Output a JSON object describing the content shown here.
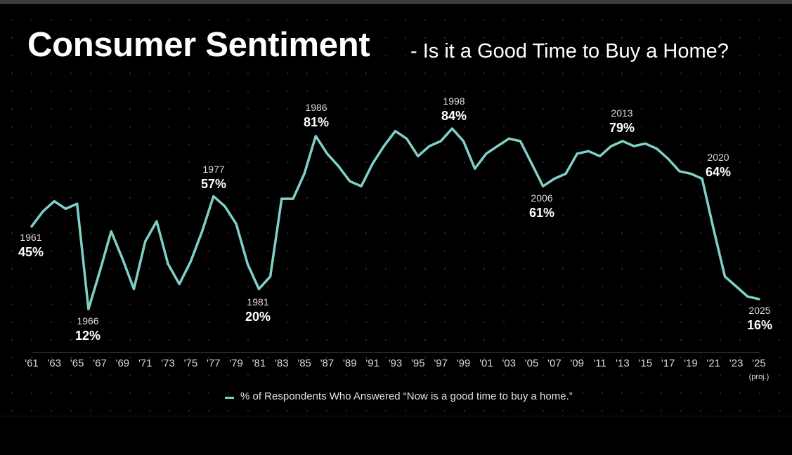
{
  "title": "Consumer Sentiment",
  "subtitle": "- Is it a Good Time to Buy a Home?",
  "chart_data": {
    "type": "line",
    "title": "Consumer Sentiment - Is it a Good Time to Buy a Home?",
    "xlabel": "",
    "ylabel": "",
    "x": [
      1961,
      1962,
      1963,
      1964,
      1965,
      1966,
      1967,
      1968,
      1969,
      1970,
      1971,
      1972,
      1973,
      1974,
      1975,
      1976,
      1977,
      1978,
      1979,
      1980,
      1981,
      1982,
      1983,
      1984,
      1985,
      1986,
      1987,
      1988,
      1989,
      1990,
      1991,
      1992,
      1993,
      1994,
      1995,
      1996,
      1997,
      1998,
      1999,
      2000,
      2001,
      2002,
      2003,
      2004,
      2005,
      2006,
      2007,
      2008,
      2009,
      2010,
      2011,
      2012,
      2013,
      2014,
      2015,
      2016,
      2017,
      2018,
      2019,
      2020,
      2021,
      2022,
      2023,
      2024,
      2025
    ],
    "series": [
      {
        "name": "% of Respondents Who Answered “Now is a good time to buy a home.”",
        "color": "#7fd1c8",
        "values": [
          45,
          51,
          55,
          52,
          54,
          12,
          27,
          43,
          32,
          20,
          39,
          47,
          30,
          22,
          31,
          43,
          57,
          53,
          46,
          30,
          20,
          25,
          56,
          56,
          66,
          81,
          74,
          69,
          63,
          61,
          70,
          77,
          83,
          80,
          73,
          77,
          79,
          84,
          79,
          68,
          74,
          77,
          80,
          79,
          70,
          61,
          64,
          66,
          74,
          75,
          73,
          77,
          79,
          77,
          78,
          76,
          72,
          67,
          66,
          64,
          44,
          25,
          21,
          17,
          16
        ]
      }
    ],
    "xlim": [
      1961,
      2025
    ],
    "ylim": [
      0,
      100
    ],
    "unit": "%",
    "grid": "dotted background",
    "x_tick_labels": [
      "'61",
      "'63",
      "'65",
      "'67",
      "'69",
      "'71",
      "'73",
      "'75",
      "'77",
      "'79",
      "'81",
      "'83",
      "'85",
      "'87",
      "'89",
      "'91",
      "'93",
      "'95",
      "'97",
      "'99",
      "'01",
      "'03",
      "'05",
      "'07",
      "'09",
      "'11",
      "'13",
      "'15",
      "'17",
      "'19",
      "'21",
      "'23",
      "'25"
    ],
    "x_tick_note": "(proj.)",
    "annotations": [
      {
        "year": "1961",
        "value": "45%"
      },
      {
        "year": "1966",
        "value": "12%"
      },
      {
        "year": "1977",
        "value": "57%"
      },
      {
        "year": "1981",
        "value": "20%"
      },
      {
        "year": "1986",
        "value": "81%"
      },
      {
        "year": "1998",
        "value": "84%"
      },
      {
        "year": "2006",
        "value": "61%"
      },
      {
        "year": "2013",
        "value": "79%"
      },
      {
        "year": "2020",
        "value": "64%"
      },
      {
        "year": "2025",
        "value": "16%"
      }
    ],
    "legend": {
      "position": "bottom-center",
      "label": "% of Respondents Who Answered “Now is a good time to buy a home.”"
    }
  }
}
